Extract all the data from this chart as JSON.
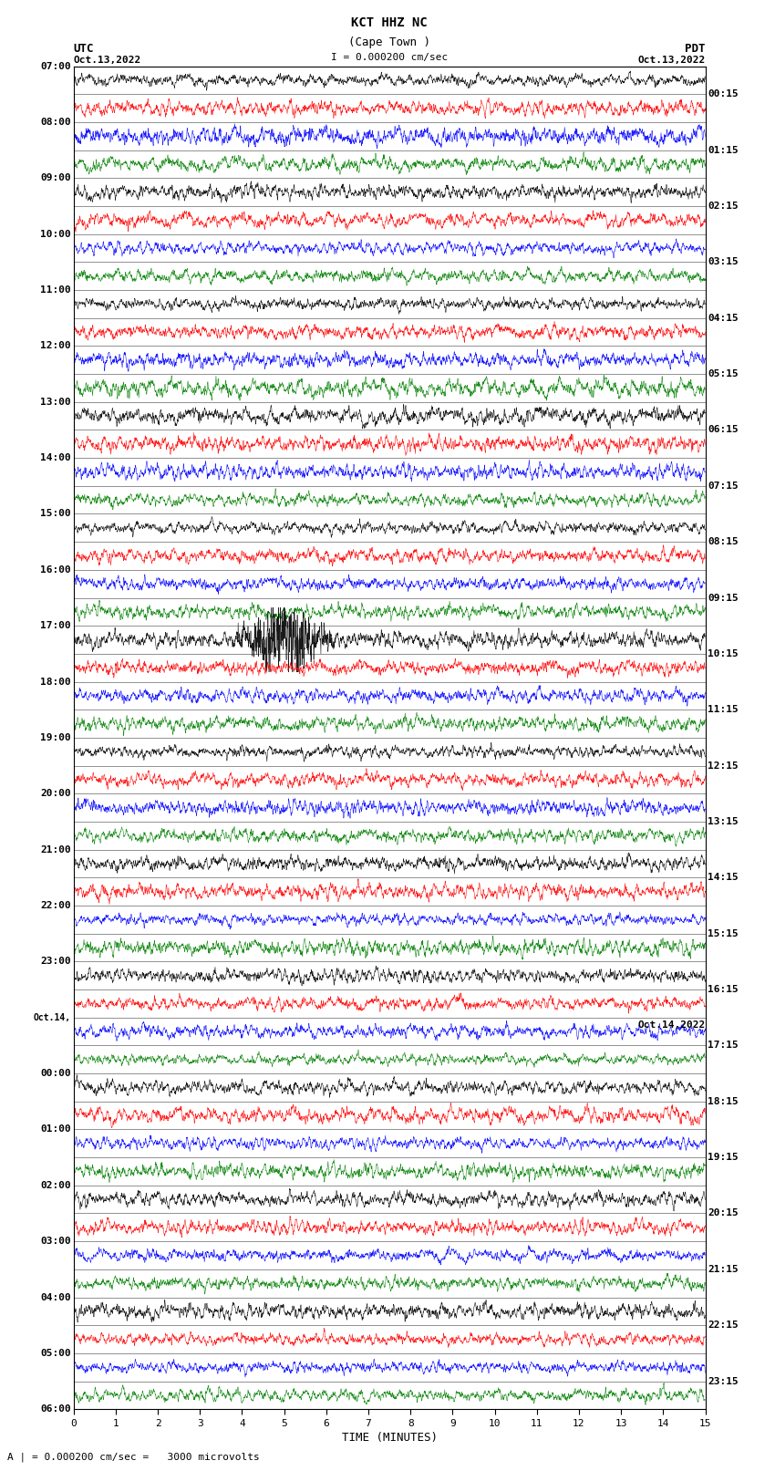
{
  "title_line1": "KCT HHZ NC",
  "title_line2": "(Cape Town )",
  "scale_text": "I = 0.000200 cm/sec",
  "utc_label": "UTC",
  "pdt_label": "PDT",
  "date_left": "Oct.13,2022",
  "date_right": "Oct.13,2022",
  "date_right2": "Oct.14,2022",
  "xlabel": "TIME (MINUTES)",
  "bottom_label": "A | = 0.000200 cm/sec =   3000 microvolts",
  "left_times": [
    "07:00",
    "08:00",
    "09:00",
    "10:00",
    "11:00",
    "12:00",
    "13:00",
    "14:00",
    "15:00",
    "16:00",
    "17:00",
    "18:00",
    "19:00",
    "20:00",
    "21:00",
    "22:00",
    "23:00",
    "Oct.14,",
    "00:00",
    "01:00",
    "02:00",
    "03:00",
    "04:00",
    "05:00",
    "06:00"
  ],
  "right_times": [
    "00:15",
    "01:15",
    "02:15",
    "03:15",
    "04:15",
    "05:15",
    "06:15",
    "07:15",
    "08:15",
    "09:15",
    "10:15",
    "11:15",
    "12:15",
    "13:15",
    "14:15",
    "15:15",
    "16:15",
    "17:15",
    "18:15",
    "19:15",
    "20:15",
    "21:15",
    "22:15",
    "23:15"
  ],
  "n_rows": 48,
  "n_cols": 3000,
  "time_max": 15,
  "colors": [
    "black",
    "red",
    "blue",
    "green"
  ],
  "bg_color": "white",
  "figsize": [
    8.5,
    16.13
  ],
  "dpi": 100
}
